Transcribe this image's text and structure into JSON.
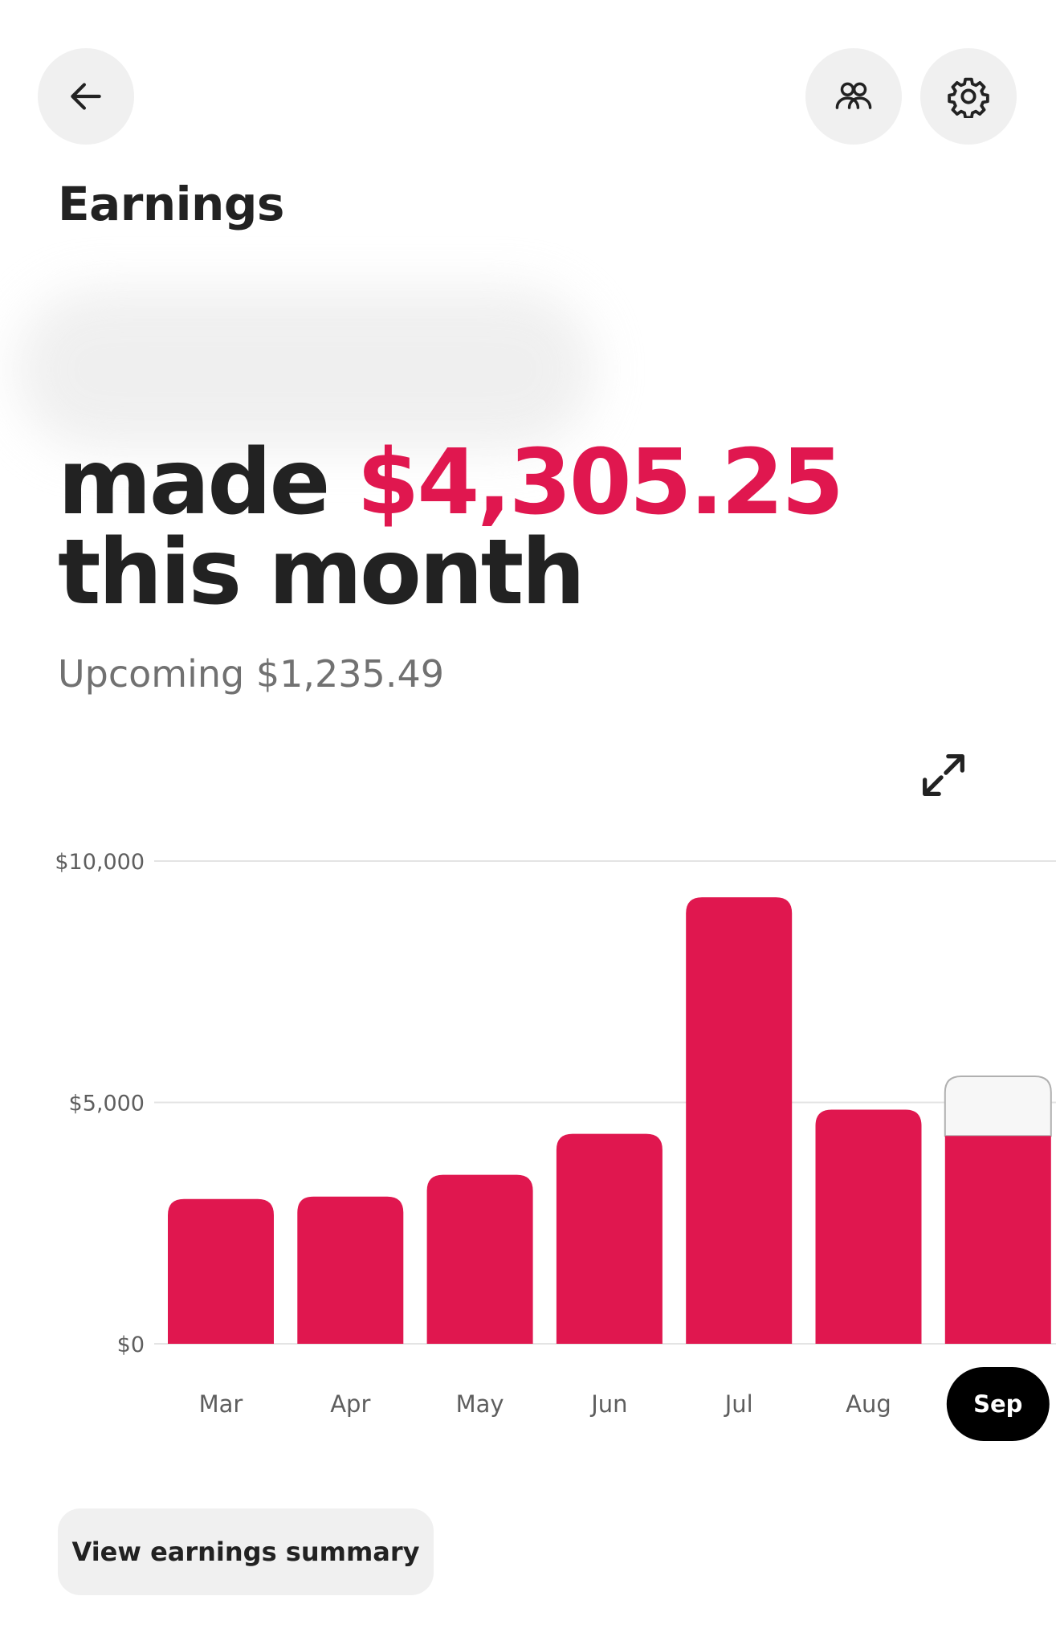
{
  "header": {
    "back_icon": "arrow-left-icon",
    "people_icon": "people-icon",
    "settings_icon": "gear-icon"
  },
  "page_title": "Earnings",
  "headline": {
    "prefix": "made",
    "amount": "$4,305.25",
    "suffix": "this month"
  },
  "upcoming": "Upcoming $1,235.49",
  "expand_icon": "expand-icon",
  "colors": {
    "accent": "#e0174f",
    "text": "#222222",
    "muted": "#717171",
    "button_bg": "#f0f0f0",
    "selected_bg": "#000000"
  },
  "chart_data": {
    "type": "bar",
    "categories": [
      "Mar",
      "Apr",
      "May",
      "Jun",
      "Jul",
      "Aug",
      "Sep"
    ],
    "values": [
      3000,
      3050,
      3500,
      4350,
      9250,
      4850,
      4305.25
    ],
    "upcoming": [
      0,
      0,
      0,
      0,
      0,
      0,
      1235.49
    ],
    "ylim": [
      0,
      10000
    ],
    "yticks": [
      10000,
      5000,
      0
    ],
    "ytick_labels": [
      "$10,000",
      "$5,000",
      "$0"
    ],
    "selected": "Sep",
    "grid": true
  },
  "summary_button": "View earnings summary"
}
